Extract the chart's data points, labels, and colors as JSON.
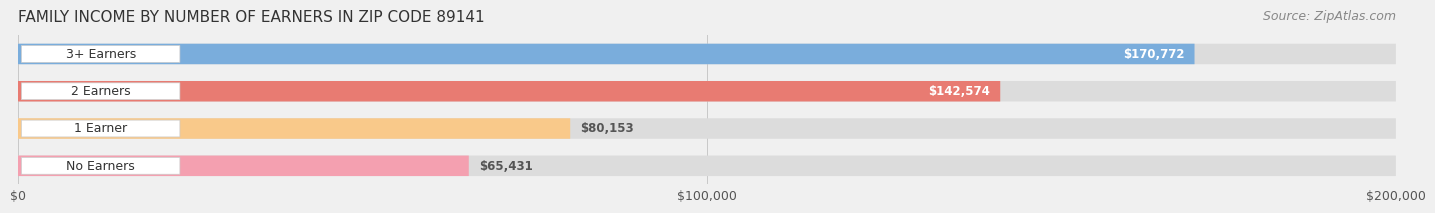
{
  "title": "FAMILY INCOME BY NUMBER OF EARNERS IN ZIP CODE 89141",
  "source": "Source: ZipAtlas.com",
  "categories": [
    "No Earners",
    "1 Earner",
    "2 Earners",
    "3+ Earners"
  ],
  "values": [
    65431,
    80153,
    142574,
    170772
  ],
  "bar_colors": [
    "#f4a0b0",
    "#f9c98a",
    "#e87b72",
    "#7aaddc"
  ],
  "bar_edge_colors": [
    "#f4a0b0",
    "#f9c98a",
    "#e87b72",
    "#7aaddc"
  ],
  "label_colors": [
    "#555555",
    "#555555",
    "#ffffff",
    "#ffffff"
  ],
  "background_color": "#f0f0f0",
  "bar_bg_color": "#e8e8e8",
  "xlim": [
    0,
    200000
  ],
  "xtick_values": [
    0,
    100000,
    200000
  ],
  "xtick_labels": [
    "$0",
    "$100,000",
    "$200,000"
  ],
  "title_fontsize": 11,
  "source_fontsize": 9,
  "label_fontsize": 9,
  "value_fontsize": 8.5,
  "tick_fontsize": 9
}
